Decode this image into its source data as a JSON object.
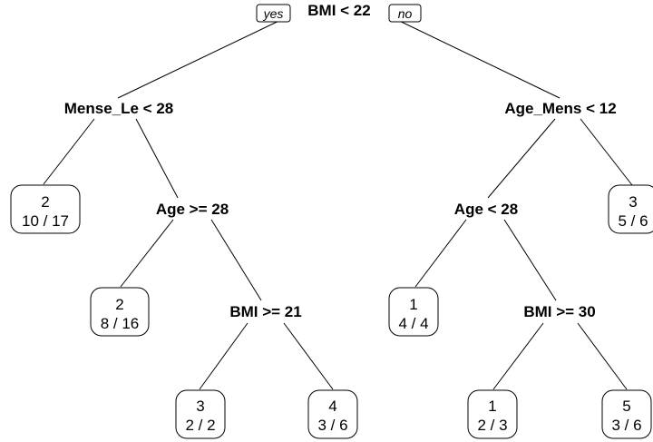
{
  "tree": {
    "branch_yes": "yes",
    "branch_no": "no",
    "splits": {
      "root": "BMI < 22",
      "left": "Mense_Le < 28",
      "left_right": "Age >= 28",
      "left_right_right": "BMI >= 21",
      "right": "Age_Mens < 12",
      "right_left": "Age < 28",
      "right_left_right": "BMI >= 30"
    },
    "leaves": {
      "l1": {
        "class": "2",
        "ratio": "10 / 17"
      },
      "l2": {
        "class": "2",
        "ratio": "8 / 16"
      },
      "l3": {
        "class": "3",
        "ratio": "2 / 2"
      },
      "l4": {
        "class": "4",
        "ratio": "3 / 6"
      },
      "r1": {
        "class": "3",
        "ratio": "5 / 6"
      },
      "r2": {
        "class": "1",
        "ratio": "4 / 4"
      },
      "r3": {
        "class": "1",
        "ratio": "2 / 3"
      },
      "r4": {
        "class": "5",
        "ratio": "3 / 6"
      }
    }
  }
}
